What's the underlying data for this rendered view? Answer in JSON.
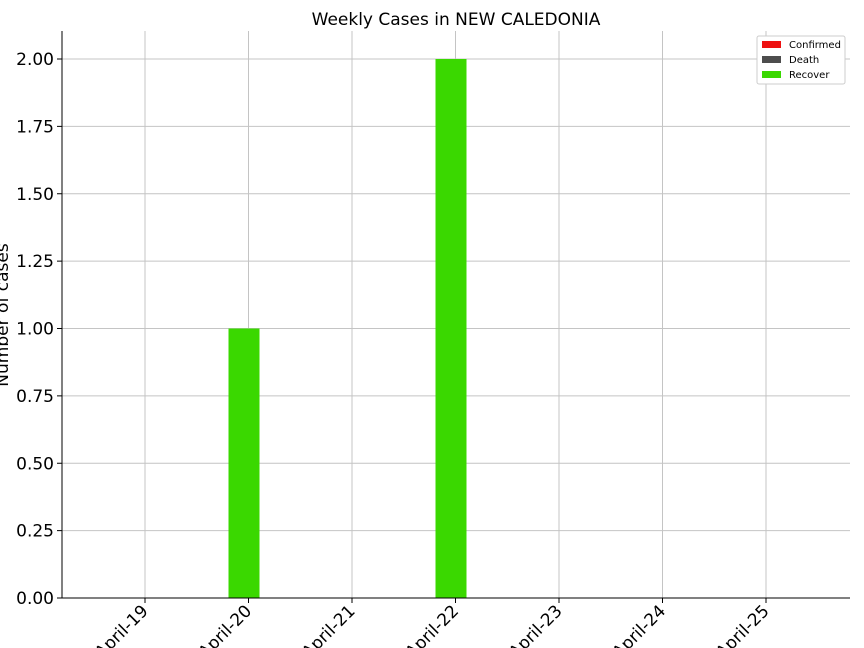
{
  "chart_data": {
    "type": "bar",
    "title": "Weekly Cases in NEW CALEDONIA",
    "xlabel": "",
    "ylabel": "Number of cases",
    "categories": [
      "April-19",
      "April-20",
      "April-21",
      "April-22",
      "April-23",
      "April-24",
      "April-25"
    ],
    "x_tick_labels": [
      "April-19",
      "April-20",
      "April-21",
      "April-22",
      "April-23",
      "April-24",
      "April-25"
    ],
    "y_ticks": [
      0.0,
      0.25,
      0.5,
      0.75,
      1.0,
      1.25,
      1.5,
      1.75,
      2.0
    ],
    "ylim": [
      0,
      2.1
    ],
    "grid": true,
    "legend_position": "top-right",
    "series": [
      {
        "name": "Confirmed",
        "color": "#ee1111",
        "values": [
          0,
          0,
          0,
          0,
          0,
          0,
          0
        ]
      },
      {
        "name": "Death",
        "color": "#4d4d4d",
        "values": [
          0,
          0,
          0,
          0,
          0,
          0,
          0
        ]
      },
      {
        "name": "Recover",
        "color": "#3ad800",
        "values": [
          0,
          1,
          0,
          2,
          0,
          0,
          0
        ]
      }
    ]
  }
}
